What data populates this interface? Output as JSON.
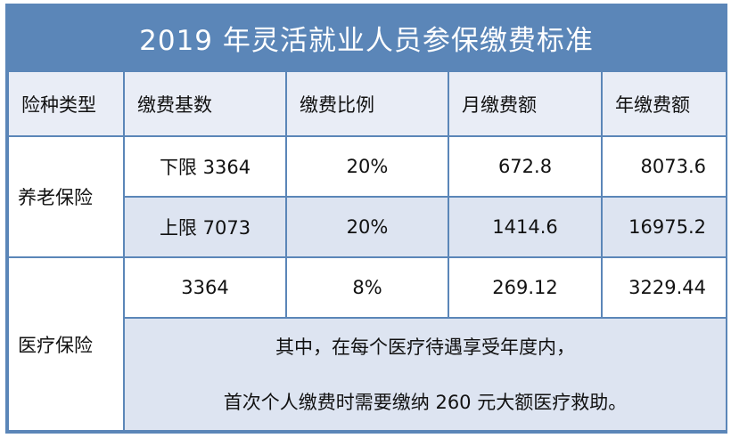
{
  "title": "2019 年灵活就业人员参保缴费标准",
  "headers": [
    "险种类型",
    "缴费基数",
    "缴费比例",
    "月缴费额",
    "年缴费额"
  ],
  "pension": {
    "label": "养老保险",
    "rows": [
      {
        "base": "下限 3364",
        "rate": "20%",
        "monthly": "672.8",
        "yearly": "8073.6"
      },
      {
        "base": "上限 7073",
        "rate": "20%",
        "monthly": "1414.6",
        "yearly": "16975.2"
      }
    ]
  },
  "medical": {
    "label": "医疗保险",
    "row": {
      "base": "3364",
      "rate": "8%",
      "monthly": "269.12",
      "yearly": "3229.44"
    },
    "note_line1": "其中，在每个医疗待遇享受年度内，",
    "note_line2": "首次个人缴费时需要缴纳 260 元大额医疗救助。"
  }
}
